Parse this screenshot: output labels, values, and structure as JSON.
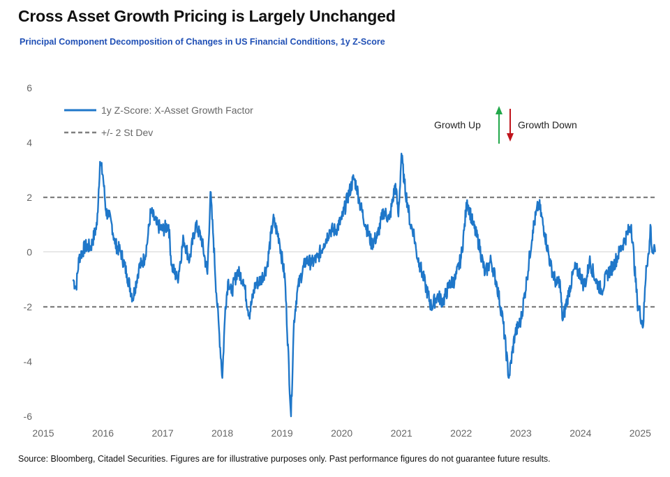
{
  "title": "Cross Asset Growth Pricing is Largely Unchanged",
  "subtitle": "Principal Component Decomposition of Changes in US Financial Conditions, 1y Z-Score",
  "source": "Source: Bloomberg, Citadel Securities. Figures are for illustrative purposes only. Past performance figures do not guarantee future results.",
  "chart_data": {
    "type": "line",
    "title": "Cross Asset Growth Pricing is Largely Unchanged",
    "subtitle": "Principal Component Decomposition of Changes in US Financial Conditions, 1y Z-Score",
    "xlabel": "",
    "ylabel": "",
    "xlim": [
      2015,
      2025.3
    ],
    "ylim": [
      -6,
      6
    ],
    "x_ticks": [
      "2015",
      "2016",
      "2017",
      "2018",
      "2019",
      "2020",
      "2021",
      "2022",
      "2023",
      "2024",
      "2025"
    ],
    "y_ticks": [
      "6",
      "4",
      "2",
      "0",
      "-2",
      "-4",
      "-6"
    ],
    "grid": false,
    "legend_position": "top-left",
    "series": [
      {
        "name": "1y Z-Score: X-Asset Growth Factor",
        "color": "#1f77c9",
        "x": [
          2015.5,
          2015.55,
          2015.6,
          2015.7,
          2015.8,
          2015.9,
          2015.95,
          2016.0,
          2016.05,
          2016.1,
          2016.15,
          2016.2,
          2016.3,
          2016.4,
          2016.5,
          2016.6,
          2016.7,
          2016.75,
          2016.8,
          2016.9,
          2017.0,
          2017.1,
          2017.15,
          2017.25,
          2017.35,
          2017.45,
          2017.55,
          2017.65,
          2017.75,
          2017.8,
          2017.85,
          2017.9,
          2017.95,
          2018.0,
          2018.05,
          2018.1,
          2018.15,
          2018.25,
          2018.35,
          2018.45,
          2018.55,
          2018.65,
          2018.75,
          2018.85,
          2018.95,
          2019.05,
          2019.15,
          2019.2,
          2019.25,
          2019.3,
          2019.4,
          2019.5,
          2019.6,
          2019.7,
          2019.8,
          2019.9,
          2020.0,
          2020.1,
          2020.2,
          2020.25,
          2020.3,
          2020.4,
          2020.5,
          2020.6,
          2020.7,
          2020.8,
          2020.9,
          2020.95,
          2021.0,
          2021.05,
          2021.1,
          2021.15,
          2021.2,
          2021.25,
          2021.3,
          2021.4,
          2021.5,
          2021.6,
          2021.7,
          2021.8,
          2021.9,
          2022.0,
          2022.05,
          2022.1,
          2022.2,
          2022.3,
          2022.4,
          2022.5,
          2022.6,
          2022.7,
          2022.8,
          2022.9,
          2023.0,
          2023.1,
          2023.2,
          2023.3,
          2023.4,
          2023.5,
          2023.6,
          2023.65,
          2023.7,
          2023.8,
          2023.9,
          2024.0,
          2024.05,
          2024.1,
          2024.15,
          2024.25,
          2024.35,
          2024.45,
          2024.55,
          2024.65,
          2024.75,
          2024.85,
          2024.95,
          2025.05,
          2025.1,
          2025.15,
          2025.17,
          2025.2,
          2025.25
        ],
        "values": [
          -1.0,
          -1.3,
          -0.2,
          0.2,
          0.2,
          1.0,
          3.3,
          2.8,
          1.5,
          1.3,
          1.0,
          0.3,
          0.0,
          -0.8,
          -1.7,
          -0.6,
          -0.2,
          0.5,
          1.5,
          1.0,
          0.8,
          1.0,
          -0.5,
          -1.0,
          0.5,
          -0.3,
          1.0,
          0.5,
          -0.8,
          2.2,
          0.5,
          -1.5,
          -3.0,
          -4.6,
          -2.0,
          -1.0,
          -1.5,
          -0.7,
          -1.0,
          -2.3,
          -1.2,
          -1.0,
          -0.5,
          1.2,
          0.5,
          -1.0,
          -6.0,
          -2.5,
          -1.5,
          -1.0,
          -0.3,
          -0.4,
          -0.2,
          0.3,
          0.8,
          0.8,
          1.2,
          2.0,
          2.7,
          2.4,
          1.8,
          1.0,
          0.3,
          0.6,
          1.5,
          1.2,
          2.5,
          1.3,
          3.6,
          2.5,
          1.8,
          1.0,
          0.8,
          0.0,
          -0.4,
          -1.2,
          -2.0,
          -1.6,
          -1.8,
          -1.2,
          -1.0,
          -0.2,
          0.8,
          1.9,
          1.0,
          0.3,
          -0.8,
          -0.3,
          -1.2,
          -2.5,
          -4.6,
          -3.0,
          -2.5,
          -1.0,
          0.8,
          1.8,
          0.7,
          -0.5,
          -1.2,
          -1.0,
          -2.5,
          -1.5,
          -0.6,
          -0.8,
          -1.2,
          -1.0,
          -0.3,
          -1.0,
          -1.4,
          -0.8,
          -0.5,
          0.0,
          0.5,
          1.0,
          -1.8,
          -2.7,
          -0.5,
          0.0,
          1.0,
          0.0,
          0.0
        ]
      },
      {
        "name": "+/- 2 St Dev",
        "color": "#7f7f7f",
        "style": "dashed",
        "levels": [
          2,
          -2
        ]
      }
    ],
    "annotations": [
      {
        "text": "Growth Up",
        "arrow": "up",
        "arrow_color": "#22a84a"
      },
      {
        "text": "Growth Down",
        "arrow": "down",
        "arrow_color": "#c0141c"
      }
    ]
  }
}
